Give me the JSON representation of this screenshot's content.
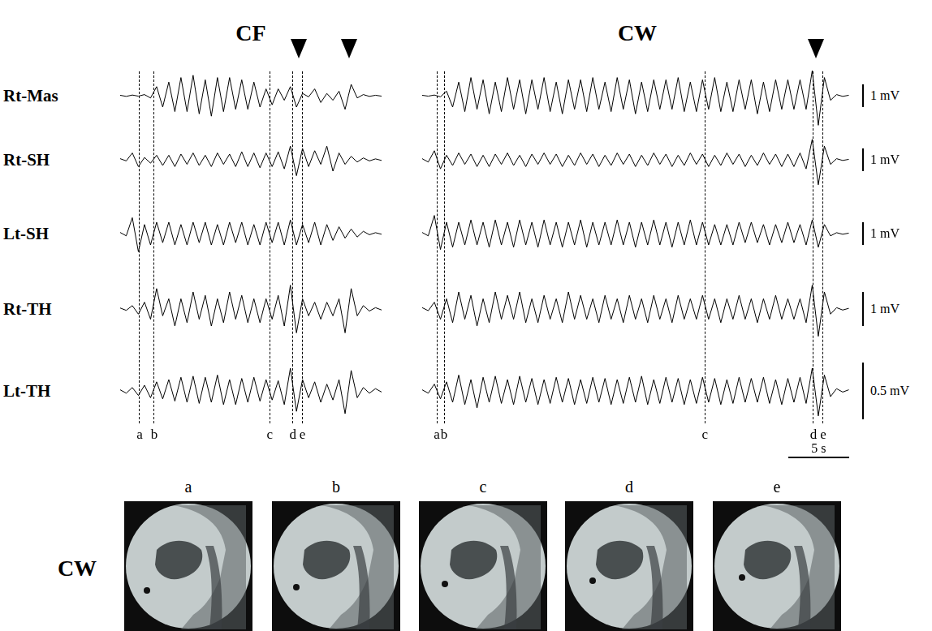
{
  "chart_data": [
    {
      "type": "line",
      "title": "CF",
      "x": [
        0,
        0.5,
        1,
        1.5,
        2,
        2.5,
        3,
        3.5,
        4,
        4.5,
        5,
        5.5,
        6,
        6.5,
        7,
        7.5,
        8,
        8.5,
        9,
        9.5,
        10,
        10.5,
        11,
        11.5,
        12,
        12.5,
        13,
        13.5,
        14,
        14.5,
        15,
        15.5,
        16,
        16.5,
        17,
        17.5,
        18,
        18.5,
        19,
        19.5,
        20,
        20.5,
        21,
        21.5
      ],
      "xlim": [
        0,
        21.5
      ],
      "xticks": [
        {
          "value": 1.6,
          "label": "a"
        },
        {
          "value": 2.8,
          "label": "b"
        },
        {
          "value": 12.3,
          "label": "c"
        },
        {
          "value": 14.2,
          "label": "d"
        },
        {
          "value": 15.0,
          "label": "e"
        }
      ],
      "arrows": [
        14.7,
        18.8
      ],
      "tick_labels": "x",
      "grid": false,
      "series": [
        {
          "name": "Rt-Mas",
          "color": "#000000",
          "ylim": [
            -1.5,
            1.5
          ],
          "values": [
            0.02,
            -0.03,
            0.03,
            -0.02,
            0.05,
            -0.1,
            0.4,
            -0.5,
            0.6,
            -0.7,
            0.8,
            -0.7,
            0.9,
            -0.8,
            0.7,
            -0.9,
            0.8,
            -0.7,
            0.8,
            -0.6,
            0.7,
            -0.6,
            0.6,
            -0.5,
            0.3,
            -0.4,
            0.3,
            -0.2,
            0.4,
            -0.5,
            0.1,
            -0.05,
            0.3,
            -0.3,
            0.1,
            -0.2,
            0.2,
            -0.6,
            0.5,
            -0.1,
            0.05,
            -0.03,
            0.02,
            -0.02
          ]
        },
        {
          "name": "Rt-SH",
          "color": "#000000",
          "ylim": [
            -1.5,
            1.5
          ],
          "values": [
            0.05,
            -0.05,
            0.3,
            -0.3,
            0.1,
            -0.15,
            0.2,
            -0.25,
            0.2,
            -0.3,
            0.25,
            -0.2,
            0.3,
            -0.25,
            0.2,
            -0.3,
            0.3,
            -0.2,
            0.25,
            -0.3,
            0.35,
            -0.3,
            0.3,
            -0.35,
            0.3,
            -0.3,
            0.35,
            -0.4,
            0.6,
            -0.7,
            0.5,
            -0.3,
            0.4,
            -0.2,
            0.6,
            -0.5,
            0.3,
            -0.2,
            0.15,
            -0.1,
            0.08,
            -0.05,
            0.04,
            -0.03
          ]
        },
        {
          "name": "Lt-SH",
          "color": "#000000",
          "ylim": [
            -1.5,
            1.5
          ],
          "values": [
            0.05,
            -0.1,
            0.7,
            -0.8,
            0.4,
            -0.5,
            0.5,
            -0.4,
            0.5,
            -0.5,
            0.4,
            -0.5,
            0.5,
            -0.4,
            0.5,
            -0.5,
            0.4,
            -0.5,
            0.5,
            -0.4,
            0.5,
            -0.5,
            0.4,
            -0.5,
            0.5,
            -0.4,
            0.5,
            -0.5,
            0.6,
            -0.5,
            0.4,
            -0.4,
            0.5,
            -0.5,
            0.4,
            -0.3,
            0.3,
            -0.2,
            0.2,
            -0.15,
            0.1,
            -0.05,
            0.04,
            -0.03
          ]
        },
        {
          "name": "Rt-TH",
          "color": "#000000",
          "ylim": [
            -1,
            1
          ],
          "values": [
            0.03,
            -0.04,
            0.1,
            -0.15,
            0.2,
            -0.3,
            0.6,
            -0.2,
            0.3,
            -0.5,
            0.3,
            -0.4,
            0.5,
            -0.3,
            0.4,
            -0.5,
            0.3,
            -0.4,
            0.5,
            -0.3,
            0.4,
            -0.4,
            0.3,
            -0.4,
            0.3,
            -0.3,
            0.4,
            -0.5,
            0.7,
            -0.7,
            0.3,
            -0.2,
            0.2,
            -0.3,
            0.2,
            -0.2,
            0.3,
            -0.7,
            0.6,
            -0.2,
            0.1,
            -0.06,
            0.04,
            -0.03
          ]
        },
        {
          "name": "Lt-TH",
          "color": "#000000",
          "ylim": [
            -0.3,
            0.3
          ],
          "values": [
            0.01,
            -0.02,
            0.03,
            -0.04,
            0.05,
            -0.06,
            0.08,
            -0.07,
            0.1,
            -0.09,
            0.12,
            -0.1,
            0.13,
            -0.11,
            0.12,
            -0.1,
            0.14,
            -0.12,
            0.1,
            -0.12,
            0.11,
            -0.1,
            0.12,
            -0.09,
            0.1,
            -0.08,
            0.09,
            -0.12,
            0.2,
            -0.18,
            0.1,
            -0.06,
            0.08,
            -0.1,
            0.06,
            -0.08,
            0.1,
            -0.2,
            0.18,
            -0.06,
            0.03,
            -0.02,
            0.02,
            -0.01
          ]
        }
      ]
    },
    {
      "type": "line",
      "title": "CW",
      "x": [
        0,
        0.5,
        1,
        1.5,
        2,
        2.5,
        3,
        3.5,
        4,
        4.5,
        5,
        5.5,
        6,
        6.5,
        7,
        7.5,
        8,
        8.5,
        9,
        9.5,
        10,
        10.5,
        11,
        11.5,
        12,
        12.5,
        13,
        13.5,
        14,
        14.5,
        15,
        15.5,
        16,
        16.5,
        17,
        17.5,
        18,
        18.5,
        19,
        19.5,
        20,
        20.5,
        21,
        21.5,
        22,
        22.5,
        23,
        23.5,
        24,
        24.5,
        25,
        25.5,
        26,
        26.5,
        27,
        27.5,
        28,
        28.5,
        29,
        29.5,
        30,
        30.5,
        31,
        31.5,
        32,
        32.5,
        33,
        33.5,
        34,
        34.5,
        35
      ],
      "xlim": [
        0,
        35.3
      ],
      "xticks": [
        {
          "value": 1.2,
          "label": "a"
        },
        {
          "value": 1.8,
          "label": "b"
        },
        {
          "value": 23.2,
          "label": "c"
        },
        {
          "value": 32.1,
          "label": "d"
        },
        {
          "value": 32.9,
          "label": "e"
        }
      ],
      "arrows": [
        32.3
      ],
      "time_scale_bar": {
        "value": 5,
        "label": "5 s"
      },
      "tick_labels": "x",
      "grid": false,
      "series": [
        {
          "name": "Rt-Mas",
          "color": "#000000",
          "ylim": [
            -1.5,
            1.5
          ],
          "scale_bar": {
            "value": 1,
            "label": "1 mV"
          },
          "values": [
            0.02,
            -0.02,
            0.03,
            -0.05,
            0.2,
            -0.5,
            0.6,
            -0.7,
            0.8,
            -0.6,
            0.7,
            -0.8,
            0.6,
            -0.7,
            0.8,
            -0.6,
            0.7,
            -0.8,
            0.7,
            -0.6,
            0.8,
            -0.7,
            0.6,
            -0.8,
            0.7,
            -0.6,
            0.7,
            -0.7,
            0.8,
            -0.6,
            0.6,
            -0.7,
            0.8,
            -0.6,
            0.7,
            -0.8,
            0.6,
            -0.7,
            0.7,
            -0.6,
            0.7,
            -0.6,
            0.8,
            -0.7,
            0.6,
            -0.7,
            0.7,
            -0.6,
            0.8,
            -0.7,
            0.6,
            -0.7,
            0.7,
            -0.6,
            0.7,
            -0.8,
            0.6,
            -0.7,
            0.7,
            -0.6,
            0.7,
            -0.6,
            0.7,
            -0.6,
            1.1,
            -1.3,
            0.8,
            -0.2,
            0.05,
            -0.03,
            0.02
          ]
        },
        {
          "name": "Rt-SH",
          "color": "#000000",
          "ylim": [
            -1.5,
            1.5
          ],
          "scale_bar": {
            "value": 1,
            "label": "1 mV"
          },
          "values": [
            0.05,
            -0.1,
            0.4,
            -0.4,
            0.2,
            -0.25,
            0.3,
            -0.2,
            0.25,
            -0.3,
            0.2,
            -0.3,
            0.25,
            -0.2,
            0.3,
            -0.25,
            0.2,
            -0.3,
            0.25,
            -0.2,
            0.3,
            -0.2,
            0.25,
            -0.3,
            0.2,
            -0.25,
            0.3,
            -0.2,
            0.25,
            -0.3,
            0.2,
            -0.25,
            0.3,
            -0.2,
            0.25,
            -0.3,
            0.2,
            -0.25,
            0.3,
            -0.2,
            0.25,
            -0.3,
            0.2,
            -0.25,
            0.3,
            -0.2,
            0.25,
            -0.3,
            0.2,
            -0.25,
            0.3,
            -0.2,
            0.25,
            -0.3,
            0.2,
            -0.25,
            0.3,
            -0.2,
            0.25,
            -0.3,
            0.25,
            -0.3,
            0.3,
            -0.4,
            0.9,
            -1.1,
            0.6,
            -0.2,
            0.05,
            -0.03,
            0.02
          ]
        },
        {
          "name": "Lt-SH",
          "color": "#000000",
          "ylim": [
            -1.5,
            1.5
          ],
          "scale_bar": {
            "value": 1,
            "label": "1 mV"
          },
          "values": [
            0.05,
            -0.1,
            0.8,
            -0.7,
            0.5,
            -0.6,
            0.5,
            -0.5,
            0.6,
            -0.5,
            0.5,
            -0.6,
            0.6,
            -0.5,
            0.5,
            -0.6,
            0.6,
            -0.5,
            0.5,
            -0.6,
            0.6,
            -0.5,
            0.5,
            -0.6,
            0.5,
            -0.5,
            0.6,
            -0.6,
            0.5,
            -0.5,
            0.5,
            -0.5,
            0.6,
            -0.5,
            0.5,
            -0.6,
            0.5,
            -0.5,
            0.6,
            -0.5,
            0.5,
            -0.6,
            0.5,
            -0.5,
            0.6,
            -0.5,
            0.5,
            -0.5,
            0.4,
            -0.5,
            0.4,
            -0.5,
            0.5,
            -0.4,
            0.5,
            -0.4,
            0.4,
            -0.5,
            0.4,
            -0.4,
            0.5,
            -0.4,
            0.4,
            -0.5,
            0.6,
            -0.6,
            0.4,
            -0.1,
            0.04,
            -0.03,
            0.02
          ]
        },
        {
          "name": "Rt-TH",
          "color": "#000000",
          "ylim": [
            -1,
            1
          ],
          "scale_bar": {
            "value": 1,
            "label": "1 mV"
          },
          "values": [
            0.04,
            -0.05,
            0.2,
            -0.3,
            0.3,
            -0.4,
            0.5,
            -0.3,
            0.4,
            -0.5,
            0.3,
            -0.4,
            0.5,
            -0.3,
            0.4,
            -0.3,
            0.5,
            -0.4,
            0.3,
            -0.4,
            0.4,
            -0.3,
            0.3,
            -0.4,
            0.5,
            -0.3,
            0.4,
            -0.3,
            0.3,
            -0.4,
            0.4,
            -0.3,
            0.3,
            -0.4,
            0.4,
            -0.3,
            0.3,
            -0.4,
            0.4,
            -0.3,
            0.3,
            -0.4,
            0.4,
            -0.3,
            0.3,
            -0.3,
            0.4,
            -0.3,
            0.3,
            -0.4,
            0.3,
            -0.3,
            0.4,
            -0.3,
            0.3,
            -0.4,
            0.3,
            -0.3,
            0.4,
            -0.3,
            0.3,
            -0.3,
            0.3,
            -0.4,
            0.7,
            -0.8,
            0.5,
            -0.15,
            0.04,
            -0.03,
            0.02
          ]
        },
        {
          "name": "Lt-TH",
          "color": "#000000",
          "ylim": [
            -0.3,
            0.3
          ],
          "scale_bar": {
            "value": 0.5,
            "label": "0.5 mV"
          },
          "values": [
            0.01,
            -0.02,
            0.06,
            -0.07,
            0.08,
            -0.1,
            0.14,
            -0.12,
            0.1,
            -0.15,
            0.12,
            -0.1,
            0.13,
            -0.11,
            0.1,
            -0.12,
            0.13,
            -0.1,
            0.11,
            -0.12,
            0.1,
            -0.11,
            0.12,
            -0.1,
            0.11,
            -0.12,
            0.1,
            -0.11,
            0.12,
            -0.1,
            0.11,
            -0.12,
            0.1,
            -0.11,
            0.12,
            -0.1,
            0.13,
            -0.12,
            0.1,
            -0.11,
            0.12,
            -0.1,
            0.11,
            -0.12,
            0.1,
            -0.11,
            0.12,
            -0.1,
            0.11,
            -0.12,
            0.1,
            -0.11,
            0.12,
            -0.1,
            0.11,
            -0.1,
            0.12,
            -0.11,
            0.1,
            -0.12,
            0.11,
            -0.1,
            0.12,
            -0.11,
            0.2,
            -0.22,
            0.14,
            -0.05,
            0.02,
            -0.01,
            0.01
          ]
        }
      ]
    }
  ],
  "images": {
    "title": "CW",
    "labels": [
      "a",
      "b",
      "c",
      "d",
      "e"
    ]
  }
}
